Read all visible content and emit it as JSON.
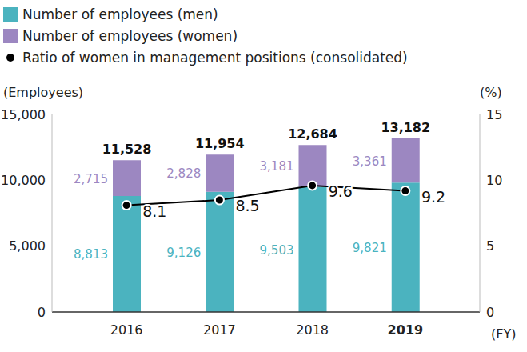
{
  "chart_data": {
    "type": "bar",
    "stacked": true,
    "categories": [
      "2016",
      "2017",
      "2018",
      "2019"
    ],
    "y_label": "(Employees)",
    "y2_label": "(%)",
    "x_label": "(FY)",
    "series": [
      {
        "name": "Number of employees (men)",
        "type": "bar",
        "color": "#4bb3bf",
        "values": [
          8813,
          9126,
          9503,
          9821
        ],
        "value_labels": [
          "8,813",
          "9,126",
          "9,503",
          "9,821"
        ]
      },
      {
        "name": "Number of employees (women)",
        "type": "bar",
        "color": "#9c87c1",
        "values": [
          2715,
          2828,
          3181,
          3361
        ],
        "value_labels": [
          "2,715",
          "2,828",
          "3,181",
          "3,361"
        ]
      },
      {
        "name": "Ratio of women in management positions (consolidated)",
        "type": "line",
        "axis": "y2",
        "color": "#000000",
        "marker": "circle",
        "values": [
          8.1,
          8.5,
          9.6,
          9.2
        ]
      }
    ],
    "totals": [
      11528,
      11954,
      12684,
      13182
    ],
    "total_labels": [
      "11,528",
      "11,954",
      "12,684",
      "13,182"
    ],
    "ylim": [
      0,
      15000
    ],
    "yticks": [
      0,
      {
        "value": 5000,
        "label": "5,000"
      },
      {
        "value": 10000,
        "label": "10,000"
      },
      {
        "value": 15000,
        "label": "15,000"
      }
    ],
    "y2lim": [
      0,
      15
    ],
    "y2ticks": [
      0,
      5,
      10,
      15
    ],
    "data_labels": true,
    "legend": "top-left",
    "grid": false
  }
}
